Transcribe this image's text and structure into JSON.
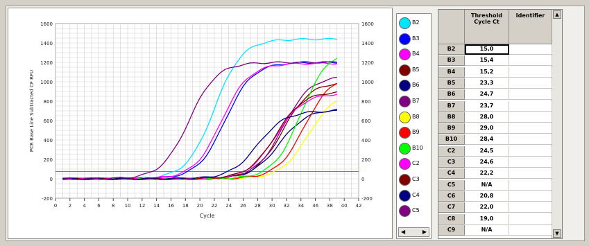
{
  "chart_data": {
    "type": "line",
    "xlabel": "Cycle",
    "ylabel": "PCR Base Line Subtracted CF RFU",
    "xlim": [
      0,
      42
    ],
    "ylim": [
      -200,
      1600
    ],
    "x_ticks": [
      "0",
      "2",
      "4",
      "6",
      "8",
      "10",
      "12",
      "14",
      "16",
      "18",
      "20",
      "22",
      "24",
      "26",
      "28",
      "30",
      "32",
      "34",
      "36",
      "38",
      "40",
      "42"
    ],
    "y_ticks_left": [
      "-200",
      "0",
      "200",
      "400",
      "600",
      "800",
      "1000",
      "1200",
      "1400",
      "1600"
    ],
    "y_ticks_right": [
      "-200",
      "0",
      "200",
      "400",
      "600",
      "800",
      "1000",
      "1200",
      "1400",
      "1600"
    ],
    "grid": true,
    "threshold": 75,
    "series": [
      {
        "name": "B2",
        "color": "#00e5ff",
        "mid": 22.0,
        "plateau": 1440
      },
      {
        "name": "B3",
        "color": "#0000ff",
        "mid": 23.5,
        "plateau": 1200
      },
      {
        "name": "B4",
        "color": "#ff00ff",
        "mid": 23.0,
        "plateau": 1190
      },
      {
        "name": "B5",
        "color": "#800000",
        "mid": 31.5,
        "plateau": 1000
      },
      {
        "name": "B6",
        "color": "#000080",
        "mid": 31.0,
        "plateau": 720
      },
      {
        "name": "B7",
        "color": "#800080",
        "mid": 31.5,
        "plateau": 1060
      },
      {
        "name": "B8",
        "color": "#ffff00",
        "mid": 35.0,
        "plateau": 900
      },
      {
        "name": "B9",
        "color": "#ff0000",
        "mid": 34.5,
        "plateau": 1080
      },
      {
        "name": "B10",
        "color": "#00ff00",
        "mid": 34.0,
        "plateau": 1340
      },
      {
        "name": "C2",
        "color": "#ff00ff",
        "mid": 30.5,
        "plateau": 880
      },
      {
        "name": "C3",
        "color": "#800000",
        "mid": 30.5,
        "plateau": 900
      },
      {
        "name": "C4",
        "color": "#000080",
        "mid": 28.0,
        "plateau": 700
      },
      {
        "name": "C5",
        "color": "#800080",
        "mid": 18.5,
        "plateau": 1200
      }
    ]
  },
  "legend_scroll": {
    "left": "◀",
    "right": "▶"
  },
  "table": {
    "headers": {
      "rowhead": "",
      "ct": "Threshold Cycle Ct",
      "id": "Identifier"
    },
    "rows": [
      {
        "well": "B2",
        "ct": "15,0"
      },
      {
        "well": "B3",
        "ct": "15,4"
      },
      {
        "well": "B4",
        "ct": "15,2"
      },
      {
        "well": "B5",
        "ct": "23,3"
      },
      {
        "well": "B6",
        "ct": "24,7"
      },
      {
        "well": "B7",
        "ct": "23,7"
      },
      {
        "well": "B8",
        "ct": "28,0"
      },
      {
        "well": "B9",
        "ct": "29,0"
      },
      {
        "well": "B10",
        "ct": "28,4"
      },
      {
        "well": "C2",
        "ct": "24,5"
      },
      {
        "well": "C3",
        "ct": "24,6"
      },
      {
        "well": "C4",
        "ct": "22,2"
      },
      {
        "well": "C5",
        "ct": "N/A"
      },
      {
        "well": "C6",
        "ct": "20,8"
      },
      {
        "well": "C7",
        "ct": "22,0"
      },
      {
        "well": "C8",
        "ct": "19,0"
      },
      {
        "well": "C9",
        "ct": "N/A"
      }
    ]
  },
  "scroll": {
    "up": "▲",
    "down": "▼"
  }
}
